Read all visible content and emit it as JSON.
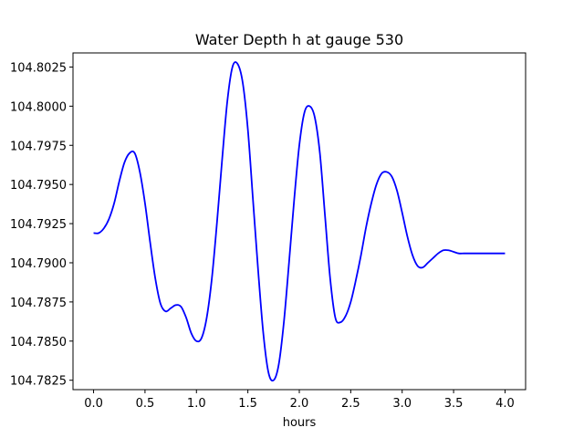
{
  "chart_data": {
    "type": "line",
    "title": "Water Depth h at gauge 530",
    "xlabel": "hours",
    "ylabel": "",
    "xlim": [
      -0.2,
      4.2
    ],
    "ylim": [
      104.7819,
      104.8034
    ],
    "xticks": [
      0.0,
      0.5,
      1.0,
      1.5,
      2.0,
      2.5,
      3.0,
      3.5,
      4.0
    ],
    "xtick_labels": [
      "0.0",
      "0.5",
      "1.0",
      "1.5",
      "2.0",
      "2.5",
      "3.0",
      "3.5",
      "4.0"
    ],
    "yticks": [
      104.7825,
      104.785,
      104.7875,
      104.79,
      104.7925,
      104.795,
      104.7975,
      104.8,
      104.8025
    ],
    "ytick_labels": [
      "104.7825",
      "104.7850",
      "104.7875",
      "104.7900",
      "104.7925",
      "104.7950",
      "104.7975",
      "104.8000",
      "104.8025"
    ],
    "grid": false,
    "series": [
      {
        "name": "",
        "color": "#0000ff",
        "x": [
          0.0,
          0.05,
          0.1,
          0.15,
          0.2,
          0.25,
          0.3,
          0.35,
          0.4,
          0.45,
          0.5,
          0.55,
          0.6,
          0.65,
          0.7,
          0.75,
          0.8,
          0.85,
          0.9,
          0.95,
          1.0,
          1.05,
          1.1,
          1.15,
          1.2,
          1.25,
          1.3,
          1.35,
          1.4,
          1.45,
          1.5,
          1.55,
          1.6,
          1.65,
          1.7,
          1.75,
          1.8,
          1.85,
          1.9,
          1.95,
          2.0,
          2.05,
          2.1,
          2.15,
          2.2,
          2.25,
          2.3,
          2.35,
          2.4,
          2.45,
          2.5,
          2.55,
          2.6,
          2.65,
          2.7,
          2.75,
          2.8,
          2.85,
          2.9,
          2.95,
          3.0,
          3.05,
          3.1,
          3.15,
          3.2,
          3.25,
          3.3,
          3.35,
          3.4,
          3.45,
          3.5,
          3.55,
          3.6,
          3.65,
          3.7,
          3.75,
          3.8,
          3.85,
          3.9,
          3.95,
          4.0
        ],
        "values": [
          104.7919,
          104.7919,
          104.7922,
          104.7928,
          104.7938,
          104.7952,
          104.7964,
          104.797,
          104.797,
          104.7958,
          104.7938,
          104.7913,
          104.789,
          104.7874,
          104.7869,
          104.7871,
          104.7873,
          104.7872,
          104.7865,
          104.7855,
          104.785,
          104.7852,
          104.7865,
          104.789,
          104.7926,
          104.7966,
          104.8003,
          104.8025,
          104.8027,
          104.8015,
          104.7985,
          104.794,
          104.7895,
          104.7855,
          104.783,
          104.7825,
          104.7835,
          104.7862,
          104.79,
          104.794,
          104.7975,
          104.7996,
          104.8,
          104.7993,
          104.797,
          104.793,
          104.789,
          104.7865,
          104.7862,
          104.7866,
          104.7875,
          104.7889,
          104.7905,
          104.7923,
          104.7938,
          104.795,
          104.7957,
          104.7958,
          104.7955,
          104.7946,
          104.7932,
          104.7917,
          104.7905,
          104.7898,
          104.7897,
          104.79,
          104.7903,
          104.7906,
          104.7908,
          104.7908,
          104.7907,
          104.7906,
          104.7906,
          104.7906,
          104.7906,
          104.7906,
          104.7906,
          104.7906,
          104.7906,
          104.7906,
          104.7906
        ]
      }
    ]
  }
}
